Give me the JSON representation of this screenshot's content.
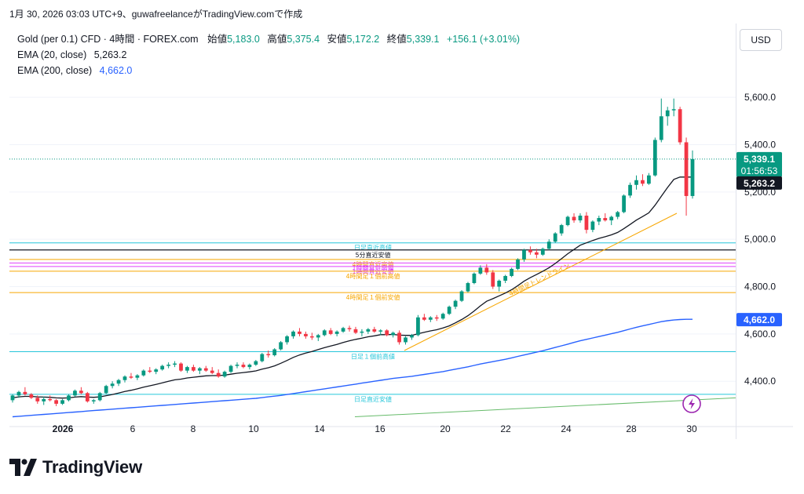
{
  "header": {
    "caption": "1月 30, 2026 03:03 UTC+9、guwafreelanceがTradingView.comで作成"
  },
  "legend": {
    "symbol": "Gold (per 0.1) CFD · 4時間 · FOREX.com",
    "open_label": "始値",
    "open": "5,183.0",
    "high_label": "高値",
    "high": "5,375.4",
    "low_label": "安値",
    "low": "5,172.2",
    "close_label": "終値",
    "close": "5,339.1",
    "change": "+156.1 (+3.01%)",
    "ema20_label": "EMA (20, close)",
    "ema20_value": "5,263.2",
    "ema200_label": "EMA (200, close)",
    "ema200_value": "4,662.0"
  },
  "currency": "USD",
  "logo_text": "TradingView",
  "colors": {
    "up": "#089981",
    "down": "#f23645",
    "ema20": "#131722",
    "ema200": "#2962ff",
    "cyan_line": "#26c6da",
    "orange_line": "#f7a600",
    "magenta_line": "#e040fb",
    "dark_line": "#131722",
    "green_trend": "#66bb6a",
    "grid": "#f0f3fa"
  },
  "chart_data": {
    "type": "candlestick",
    "x_ticks": [
      "2026",
      "6",
      "8",
      "10",
      "14",
      "16",
      "20",
      "22",
      "24",
      "28",
      "30"
    ],
    "y_ticks": [
      "4,400.0",
      "4,600.0",
      "4,800.0",
      "5,000.0",
      "5,200.0",
      "5,400.0",
      "5,600.0"
    ],
    "y_tick_values": [
      4400,
      4600,
      4800,
      5000,
      5200,
      5400,
      5600
    ],
    "ylim": [
      4245,
      5680
    ],
    "price_tags": {
      "last_price": "5,339.1",
      "countdown": "01:56:53",
      "ema20": "5,263.2",
      "ema200": "4,662.0",
      "last_value": 5339.1,
      "ema20_value": 5263.2,
      "ema200_value": 4662.0
    },
    "levels": [
      {
        "label": "日足直近高値",
        "value": 4985,
        "color": "cyan_line"
      },
      {
        "label": "5分直近安値",
        "value": 4955,
        "color": "dark_line"
      },
      {
        "label": "4時間直近高値",
        "value": 4915,
        "color": "orange_line"
      },
      {
        "label": "1時間直近高値",
        "value": 4900,
        "color": "magenta_line"
      },
      {
        "label": "1時間直近安値",
        "value": 4885,
        "color": "magenta_line"
      },
      {
        "label": "4時間足１個前高値",
        "value": 4865,
        "color": "orange_line"
      },
      {
        "label": "4時間足１個前安値",
        "value": 4775,
        "color": "orange_line"
      },
      {
        "label": "日足１個前高値",
        "value": 4525,
        "color": "cyan_line"
      },
      {
        "label": "日足直近安値",
        "value": 4345,
        "color": "cyan_line"
      }
    ],
    "trendline_label": "4時間足トレンドライン",
    "candles": [
      [
        4320,
        4345,
        4310,
        4340
      ],
      [
        4340,
        4360,
        4330,
        4355
      ],
      [
        4355,
        4375,
        4340,
        4345
      ],
      [
        4345,
        4350,
        4325,
        4330
      ],
      [
        4330,
        4340,
        4305,
        4315
      ],
      [
        4315,
        4335,
        4300,
        4325
      ],
      [
        4325,
        4340,
        4315,
        4320
      ],
      [
        4320,
        4325,
        4295,
        4305
      ],
      [
        4305,
        4325,
        4300,
        4320
      ],
      [
        4320,
        4345,
        4315,
        4340
      ],
      [
        4340,
        4365,
        4335,
        4360
      ],
      [
        4360,
        4375,
        4345,
        4350
      ],
      [
        4350,
        4355,
        4310,
        4315
      ],
      [
        4315,
        4325,
        4305,
        4320
      ],
      [
        4320,
        4355,
        4315,
        4350
      ],
      [
        4350,
        4385,
        4345,
        4380
      ],
      [
        4380,
        4400,
        4370,
        4390
      ],
      [
        4390,
        4410,
        4380,
        4405
      ],
      [
        4405,
        4425,
        4395,
        4420
      ],
      [
        4420,
        4435,
        4410,
        4415
      ],
      [
        4415,
        4430,
        4405,
        4425
      ],
      [
        4425,
        4450,
        4420,
        4445
      ],
      [
        4445,
        4460,
        4435,
        4440
      ],
      [
        4440,
        4455,
        4430,
        4450
      ],
      [
        4450,
        4470,
        4445,
        4465
      ],
      [
        4465,
        4480,
        4455,
        4470
      ],
      [
        4470,
        4485,
        4460,
        4475
      ],
      [
        4475,
        4480,
        4440,
        4445
      ],
      [
        4445,
        4465,
        4435,
        4460
      ],
      [
        4460,
        4470,
        4440,
        4445
      ],
      [
        4445,
        4460,
        4430,
        4455
      ],
      [
        4455,
        4465,
        4440,
        4445
      ],
      [
        4445,
        4460,
        4430,
        4435
      ],
      [
        4435,
        4450,
        4415,
        4420
      ],
      [
        4420,
        4445,
        4415,
        4440
      ],
      [
        4440,
        4470,
        4435,
        4465
      ],
      [
        4465,
        4480,
        4455,
        4470
      ],
      [
        4470,
        4480,
        4455,
        4460
      ],
      [
        4460,
        4475,
        4450,
        4470
      ],
      [
        4470,
        4490,
        4465,
        4485
      ],
      [
        4485,
        4520,
        4480,
        4515
      ],
      [
        4515,
        4530,
        4500,
        4510
      ],
      [
        4510,
        4540,
        4505,
        4535
      ],
      [
        4535,
        4570,
        4530,
        4565
      ],
      [
        4565,
        4595,
        4555,
        4590
      ],
      [
        4590,
        4615,
        4580,
        4610
      ],
      [
        4610,
        4625,
        4590,
        4600
      ],
      [
        4600,
        4610,
        4580,
        4590
      ],
      [
        4590,
        4605,
        4575,
        4585
      ],
      [
        4585,
        4600,
        4570,
        4595
      ],
      [
        4595,
        4620,
        4590,
        4615
      ],
      [
        4615,
        4625,
        4595,
        4600
      ],
      [
        4600,
        4615,
        4590,
        4610
      ],
      [
        4610,
        4630,
        4605,
        4625
      ],
      [
        4625,
        4635,
        4610,
        4620
      ],
      [
        4620,
        4630,
        4600,
        4605
      ],
      [
        4605,
        4620,
        4590,
        4610
      ],
      [
        4610,
        4625,
        4600,
        4620
      ],
      [
        4620,
        4630,
        4605,
        4610
      ],
      [
        4610,
        4620,
        4595,
        4615
      ],
      [
        4615,
        4620,
        4590,
        4595
      ],
      [
        4595,
        4610,
        4585,
        4605
      ],
      [
        4605,
        4615,
        4555,
        4565
      ],
      [
        4565,
        4590,
        4555,
        4585
      ],
      [
        4585,
        4600,
        4575,
        4595
      ],
      [
        4595,
        4680,
        4590,
        4670
      ],
      [
        4670,
        4685,
        4655,
        4660
      ],
      [
        4660,
        4675,
        4650,
        4670
      ],
      [
        4670,
        4680,
        4655,
        4665
      ],
      [
        4665,
        4690,
        4660,
        4685
      ],
      [
        4685,
        4720,
        4680,
        4715
      ],
      [
        4715,
        4745,
        4705,
        4740
      ],
      [
        4740,
        4785,
        4735,
        4780
      ],
      [
        4780,
        4820,
        4775,
        4815
      ],
      [
        4815,
        4860,
        4810,
        4855
      ],
      [
        4855,
        4890,
        4850,
        4880
      ],
      [
        4880,
        4895,
        4850,
        4860
      ],
      [
        4860,
        4870,
        4790,
        4800
      ],
      [
        4800,
        4830,
        4780,
        4825
      ],
      [
        4825,
        4850,
        4815,
        4845
      ],
      [
        4845,
        4880,
        4840,
        4875
      ],
      [
        4875,
        4920,
        4870,
        4915
      ],
      [
        4915,
        4960,
        4905,
        4955
      ],
      [
        4955,
        4970,
        4935,
        4945
      ],
      [
        4945,
        4960,
        4920,
        4935
      ],
      [
        4935,
        4965,
        4930,
        4960
      ],
      [
        4960,
        5000,
        4955,
        4990
      ],
      [
        4990,
        5030,
        4985,
        5025
      ],
      [
        5025,
        5065,
        5015,
        5060
      ],
      [
        5060,
        5100,
        5055,
        5095
      ],
      [
        5095,
        5110,
        5070,
        5080
      ],
      [
        5080,
        5110,
        5070,
        5100
      ],
      [
        5100,
        5115,
        5025,
        5040
      ],
      [
        5040,
        5080,
        5030,
        5075
      ],
      [
        5075,
        5100,
        5060,
        5090
      ],
      [
        5090,
        5110,
        5075,
        5080
      ],
      [
        5080,
        5100,
        5060,
        5095
      ],
      [
        5095,
        5120,
        5085,
        5115
      ],
      [
        5115,
        5190,
        5110,
        5185
      ],
      [
        5185,
        5240,
        5175,
        5230
      ],
      [
        5230,
        5270,
        5210,
        5250
      ],
      [
        5250,
        5275,
        5225,
        5235
      ],
      [
        5235,
        5280,
        5230,
        5270
      ],
      [
        5270,
        5430,
        5265,
        5420
      ],
      [
        5420,
        5595,
        5410,
        5520
      ],
      [
        5520,
        5560,
        5480,
        5545
      ],
      [
        5545,
        5595,
        5520,
        5550
      ],
      [
        5550,
        5560,
        5400,
        5410
      ],
      [
        5410,
        5430,
        5100,
        5183
      ],
      [
        5183,
        5375.4,
        5172.2,
        5339.1
      ]
    ],
    "ema20": [
      4330,
      4334,
      4336,
      4336,
      4334,
      4333,
      4332,
      4330,
      4329,
      4330,
      4333,
      4335,
      4333,
      4332,
      4334,
      4339,
      4344,
      4350,
      4357,
      4362,
      4368,
      4375,
      4381,
      4387,
      4393,
      4400,
      4406,
      4409,
      4414,
      4417,
      4420,
      4423,
      4424,
      4424,
      4426,
      4430,
      4434,
      4437,
      4440,
      4444,
      4451,
      4457,
      4465,
      4476,
      4488,
      4501,
      4511,
      4519,
      4526,
      4534,
      4542,
      4549,
      4556,
      4564,
      4571,
      4577,
      4582,
      4588,
      4592,
      4597,
      4597,
      4598,
      4595,
      4594,
      4594,
      4601,
      4607,
      4613,
      4618,
      4625,
      4634,
      4647,
      4661,
      4677,
      4697,
      4719,
      4738,
      4749,
      4761,
      4773,
      4787,
      4804,
      4823,
      4838,
      4851,
      4865,
      4880,
      4898,
      4918,
      4939,
      4957,
      4975,
      4985,
      4995,
      5004,
      5011,
      5019,
      5029,
      5045,
      5063,
      5081,
      5096,
      5112,
      5144,
      5182,
      5219,
      5253,
      5263,
      5263.2,
      5263.2
    ],
    "ema200": [
      4250,
      4252,
      4254,
      4256,
      4258,
      4260,
      4262,
      4264,
      4266,
      4268,
      4270,
      4272,
      4274,
      4276,
      4278,
      4280,
      4282,
      4284,
      4286,
      4288,
      4290,
      4292,
      4294,
      4296,
      4298,
      4300,
      4302,
      4304,
      4306,
      4308,
      4310,
      4312,
      4314,
      4316,
      4318,
      4320,
      4322,
      4324,
      4326,
      4328,
      4331,
      4334,
      4337,
      4340,
      4344,
      4348,
      4352,
      4356,
      4360,
      4364,
      4368,
      4372,
      4376,
      4380,
      4384,
      4388,
      4392,
      4396,
      4400,
      4404,
      4408,
      4412,
      4415,
      4418,
      4421,
      4425,
      4429,
      4433,
      4437,
      4441,
      4446,
      4451,
      4456,
      4461,
      4467,
      4473,
      4478,
      4483,
      4488,
      4493,
      4499,
      4505,
      4511,
      4517,
      4523,
      4529,
      4536,
      4543,
      4550,
      4557,
      4564,
      4571,
      4577,
      4583,
      4589,
      4595,
      4601,
      4607,
      4614,
      4621,
      4628,
      4634,
      4640,
      4646,
      4652,
      4656,
      4659,
      4661,
      4662,
      4662
    ]
  }
}
